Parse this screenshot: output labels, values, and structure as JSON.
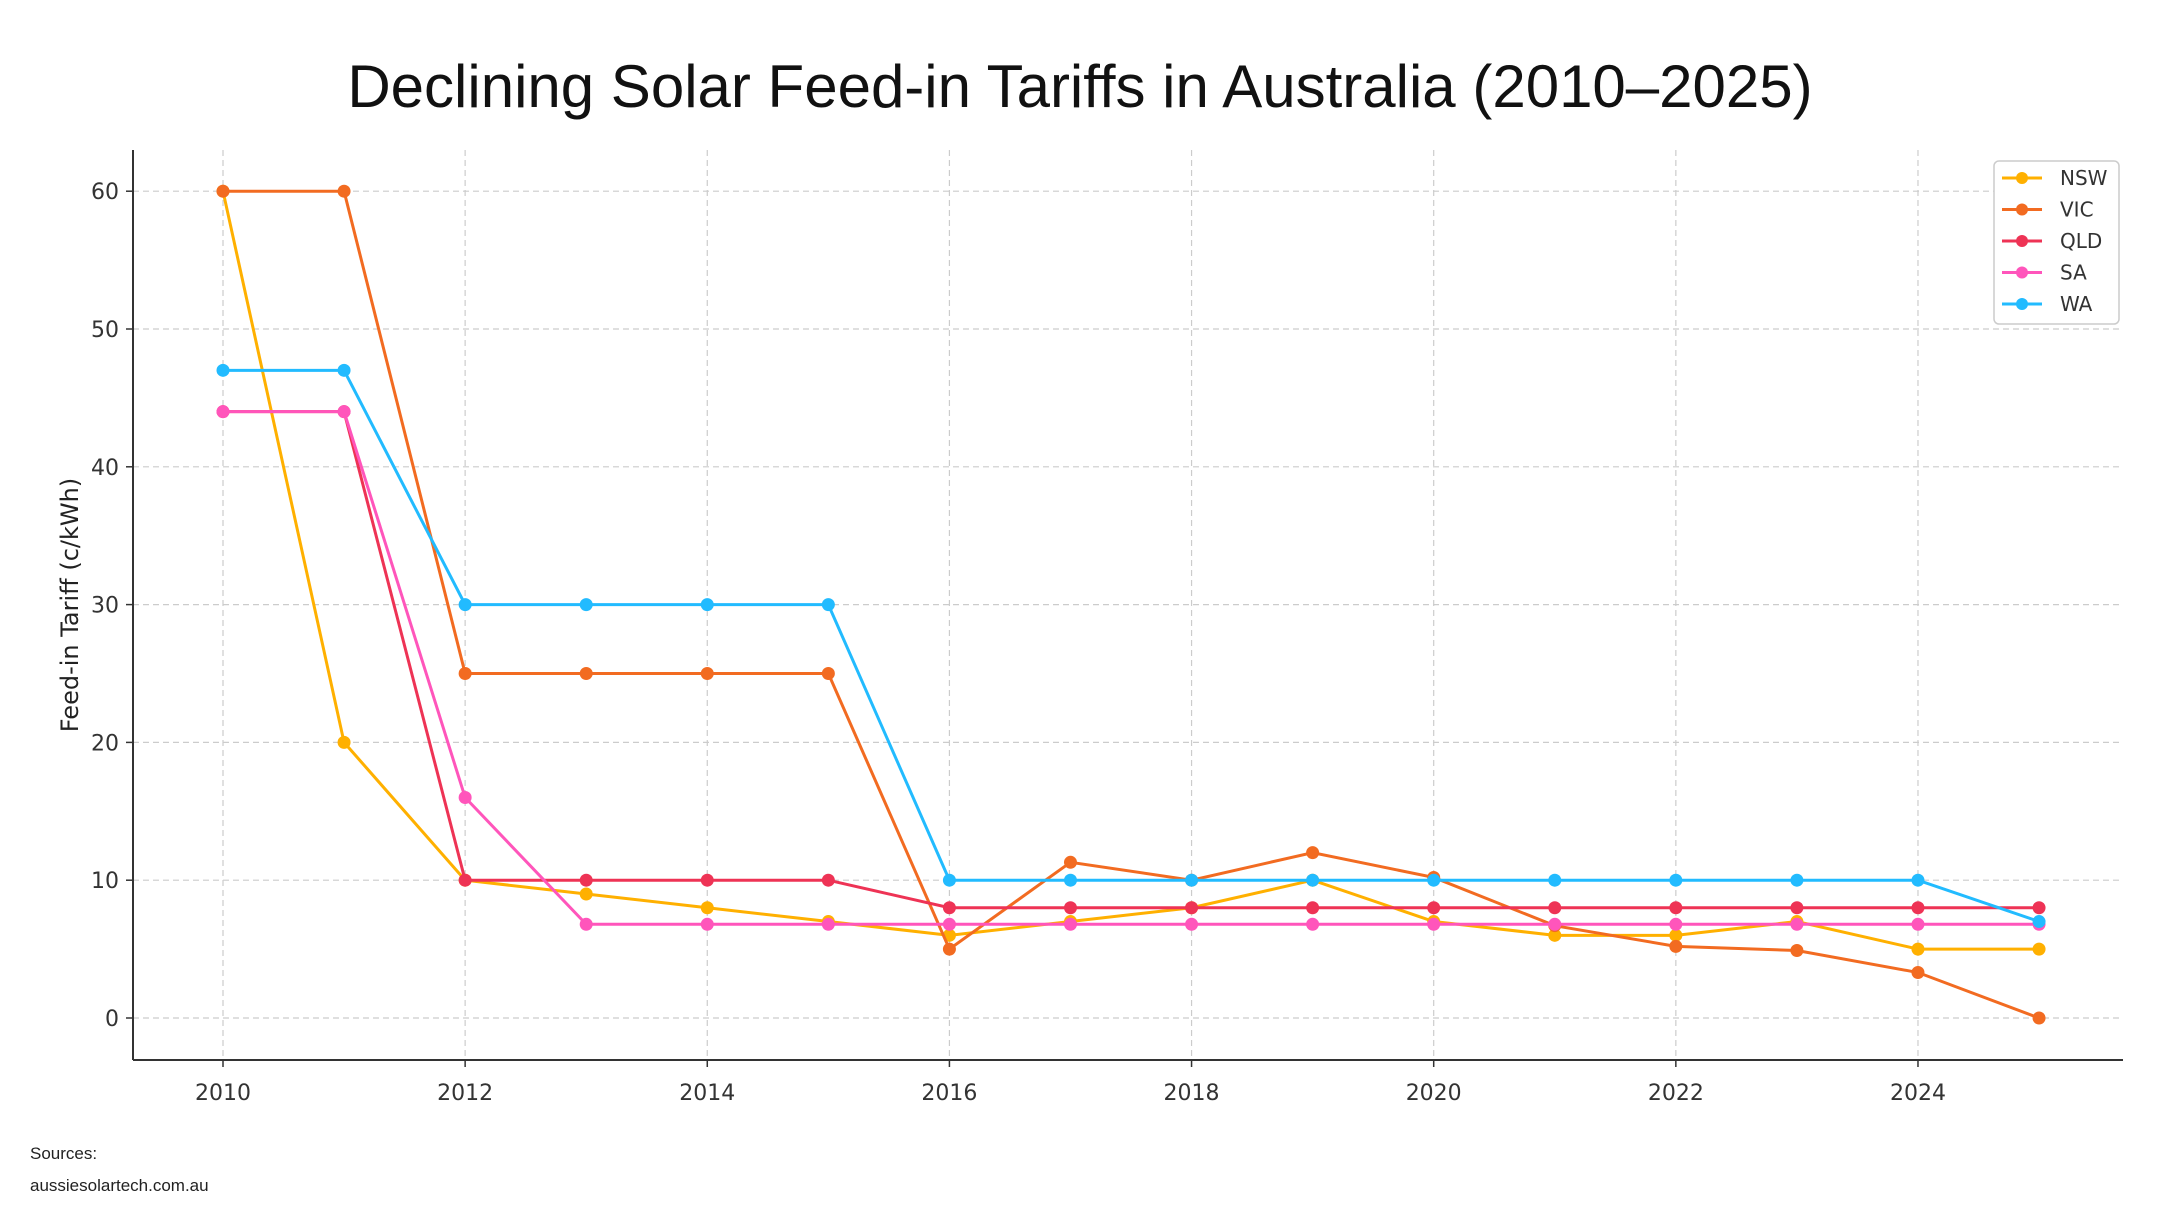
{
  "chart_data": {
    "type": "line",
    "title": "Declining Solar Feed-in Tariffs in Australia (2010–2025)",
    "xlabel": "",
    "ylabel": "Feed-in Tariff (c/kWh)",
    "x": [
      2010,
      2011,
      2012,
      2013,
      2014,
      2015,
      2016,
      2017,
      2018,
      2019,
      2020,
      2021,
      2022,
      2023,
      2024,
      2025
    ],
    "xticks": [
      2010,
      2012,
      2014,
      2016,
      2018,
      2020,
      2022,
      2024
    ],
    "yticks": [
      0,
      10,
      20,
      30,
      40,
      50,
      60
    ],
    "xlim": [
      2009.25,
      2026.4
    ],
    "ylim": [
      -3,
      63
    ],
    "grid": true,
    "legend_position": "top-right",
    "series": [
      {
        "name": "NSW",
        "color": "#FFB000",
        "values": [
          60,
          20,
          10,
          9,
          8,
          7,
          6,
          7,
          8,
          10,
          7,
          6,
          6,
          7,
          5,
          5
        ]
      },
      {
        "name": "VIC",
        "color": "#F26B21",
        "values": [
          60,
          60,
          25,
          25,
          25,
          25,
          5,
          11.3,
          10,
          12,
          10.2,
          6.7,
          5.2,
          4.9,
          3.3,
          0
        ]
      },
      {
        "name": "QLD",
        "color": "#EE3355",
        "values": [
          44,
          44,
          10,
          10,
          10,
          10,
          8,
          8,
          8,
          8,
          8,
          8,
          8,
          8,
          8,
          8
        ]
      },
      {
        "name": "SA",
        "color": "#FF55BB",
        "values": [
          44,
          44,
          16,
          6.8,
          6.8,
          6.8,
          6.8,
          6.8,
          6.8,
          6.8,
          6.8,
          6.8,
          6.8,
          6.8,
          6.8,
          6.8
        ]
      },
      {
        "name": "WA",
        "color": "#22BBFF",
        "values": [
          47,
          47,
          30,
          30,
          30,
          30,
          10,
          10,
          10,
          10,
          10,
          10,
          10,
          10,
          10,
          7
        ]
      }
    ]
  },
  "sources": {
    "label": "Sources:",
    "text": "aussiesolartech.com.au"
  }
}
